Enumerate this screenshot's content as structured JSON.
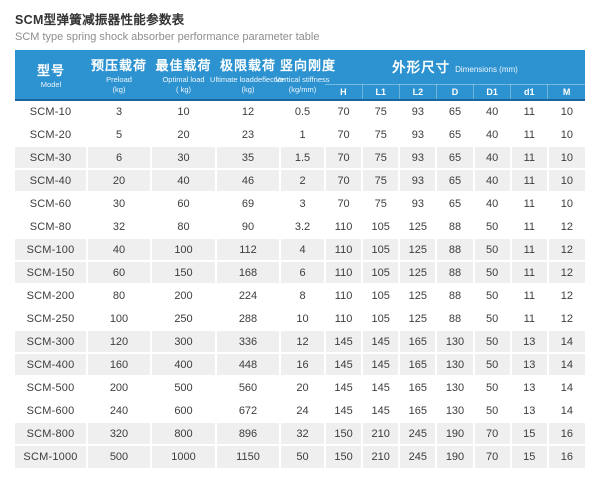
{
  "page": {
    "title_cn": "SCM型弹簧减振器性能参数表",
    "title_en": "SCM type spring shock absorber performance parameter table"
  },
  "colors": {
    "header_bg": "#2D92D0",
    "header_rule": "#19669E",
    "stripe": "#EFEFEF",
    "header_text": "#FFFFFF",
    "body_text": "#3D3D3D"
  },
  "chart_data": {
    "type": "table",
    "title": "SCM型弹簧减振器性能参数表",
    "subtitle": "SCM type spring shock absorber performance parameter table",
    "columns": [
      {
        "cn": "型号",
        "en": "Model",
        "unit": ""
      },
      {
        "cn": "预压载荷",
        "en": "Preload",
        "unit": "(kg)"
      },
      {
        "cn": "最佳载荷",
        "en": "Optimal load",
        "unit": "( kg)"
      },
      {
        "cn": "极限载荷",
        "en": "Ultimate loaddeflection",
        "unit": "(kg)"
      },
      {
        "cn": "竖向刚度",
        "en": "Vertical stiffness",
        "unit": "(kg/mm)"
      }
    ],
    "dimensions": {
      "cn": "外形尺寸",
      "en": "Dimensions (mm)",
      "subcolumns": [
        "H",
        "L1",
        "L2",
        "D",
        "D1",
        "d1",
        "M"
      ]
    },
    "rows": [
      {
        "model": "SCM-10",
        "values": [
          "3",
          "10",
          "12",
          "0.5",
          "70",
          "75",
          "93",
          "65",
          "40",
          "11",
          "10"
        ]
      },
      {
        "model": "SCM-20",
        "values": [
          "5",
          "20",
          "23",
          "1",
          "70",
          "75",
          "93",
          "65",
          "40",
          "11",
          "10"
        ]
      },
      {
        "model": "SCM-30",
        "values": [
          "6",
          "30",
          "35",
          "1.5",
          "70",
          "75",
          "93",
          "65",
          "40",
          "11",
          "10"
        ]
      },
      {
        "model": "SCM-40",
        "values": [
          "20",
          "40",
          "46",
          "2",
          "70",
          "75",
          "93",
          "65",
          "40",
          "11",
          "10"
        ]
      },
      {
        "model": "SCM-60",
        "values": [
          "30",
          "60",
          "69",
          "3",
          "70",
          "75",
          "93",
          "65",
          "40",
          "11",
          "10"
        ]
      },
      {
        "model": "SCM-80",
        "values": [
          "32",
          "80",
          "90",
          "3.2",
          "110",
          "105",
          "125",
          "88",
          "50",
          "11",
          "12"
        ]
      },
      {
        "model": "SCM-100",
        "values": [
          "40",
          "100",
          "112",
          "4",
          "110",
          "105",
          "125",
          "88",
          "50",
          "11",
          "12"
        ]
      },
      {
        "model": "SCM-150",
        "values": [
          "60",
          "150",
          "168",
          "6",
          "110",
          "105",
          "125",
          "88",
          "50",
          "11",
          "12"
        ]
      },
      {
        "model": "SCM-200",
        "values": [
          "80",
          "200",
          "224",
          "8",
          "110",
          "105",
          "125",
          "88",
          "50",
          "11",
          "12"
        ]
      },
      {
        "model": "SCM-250",
        "values": [
          "100",
          "250",
          "288",
          "10",
          "110",
          "105",
          "125",
          "88",
          "50",
          "11",
          "12"
        ]
      },
      {
        "model": "SCM-300",
        "values": [
          "120",
          "300",
          "336",
          "12",
          "145",
          "145",
          "165",
          "130",
          "50",
          "13",
          "14"
        ]
      },
      {
        "model": "SCM-400",
        "values": [
          "160",
          "400",
          "448",
          "16",
          "145",
          "145",
          "165",
          "130",
          "50",
          "13",
          "14"
        ]
      },
      {
        "model": "SCM-500",
        "values": [
          "200",
          "500",
          "560",
          "20",
          "145",
          "145",
          "165",
          "130",
          "50",
          "13",
          "14"
        ]
      },
      {
        "model": "SCM-600",
        "values": [
          "240",
          "600",
          "672",
          "24",
          "145",
          "145",
          "165",
          "130",
          "50",
          "13",
          "14"
        ]
      },
      {
        "model": "SCM-800",
        "values": [
          "320",
          "800",
          "896",
          "32",
          "150",
          "210",
          "245",
          "190",
          "70",
          "15",
          "16"
        ]
      },
      {
        "model": "SCM-1000",
        "values": [
          "500",
          "1000",
          "1150",
          "50",
          "150",
          "210",
          "245",
          "190",
          "70",
          "15",
          "16"
        ]
      }
    ]
  }
}
